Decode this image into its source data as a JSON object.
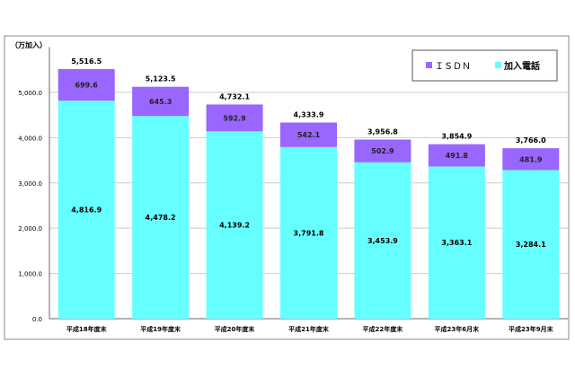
{
  "chart_data": {
    "type": "bar",
    "stacked": true,
    "unit_label": "（万加入）",
    "categories": [
      "平成18年度末",
      "平成19年度末",
      "平成20年度末",
      "平成21年度末",
      "平成22年度末",
      "平成23年6月末",
      "平成23年9月末"
    ],
    "series": [
      {
        "name": "加入電話",
        "color": "#66ffff",
        "values": [
          4816.9,
          4478.2,
          4139.2,
          3791.8,
          3453.9,
          3363.1,
          3284.1
        ],
        "labels": [
          "4,816.9",
          "4,478.2",
          "4,139.2",
          "3,791.8",
          "3,453.9",
          "3,363.1",
          "3,284.1"
        ]
      },
      {
        "name": "ＩＳＤＮ",
        "color": "#9966ff",
        "values": [
          699.6,
          645.3,
          592.9,
          542.1,
          502.9,
          491.8,
          481.9
        ],
        "labels": [
          "699.6",
          "645.3",
          "592.9",
          "542.1",
          "502.9",
          "491.8",
          "481.9"
        ]
      }
    ],
    "totals": [
      "5,516.5",
      "5,123.5",
      "4,732.1",
      "4,333.9",
      "3,956.8",
      "3,854.9",
      "3,766.0"
    ],
    "yticks": [
      0,
      1000,
      2000,
      3000,
      4000,
      5000
    ],
    "ytick_labels": [
      "0.0",
      "1,000.0",
      "2,000.0",
      "3,000.0",
      "4,000.0",
      "5,000.0"
    ],
    "ylim": [
      0,
      6000
    ],
    "grid": true,
    "legend_placement": "top-right",
    "legend_order": [
      "ＩＳＤＮ",
      "加入電話"
    ]
  }
}
